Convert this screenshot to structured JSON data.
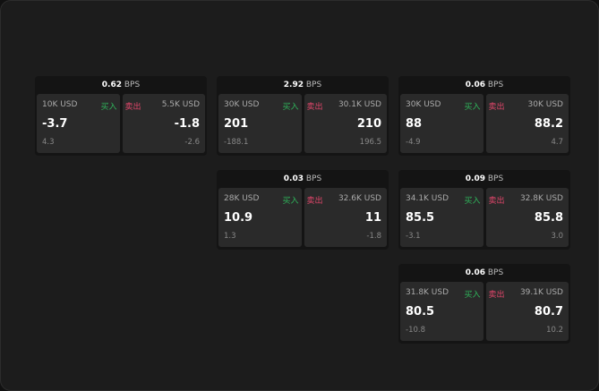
{
  "unit": "BPS",
  "buy_label": "买入",
  "sell_label": "卖出",
  "colors": {
    "buy": "#2fb35a",
    "sell": "#e0466a"
  },
  "tiles": [
    {
      "spread": "0.62",
      "buy": {
        "size": "10K USD",
        "price": "-3.7",
        "change": "4.3"
      },
      "sell": {
        "size": "5.5K USD",
        "price": "-1.8",
        "change": "-2.6"
      }
    },
    {
      "spread": "2.92",
      "buy": {
        "size": "30K USD",
        "price": "201",
        "change": "-188.1"
      },
      "sell": {
        "size": "30.1K USD",
        "price": "210",
        "change": "196.5"
      }
    },
    {
      "spread": "0.06",
      "buy": {
        "size": "30K USD",
        "price": "88",
        "change": "-4.9"
      },
      "sell": {
        "size": "30K USD",
        "price": "88.2",
        "change": "4.7"
      }
    },
    {
      "spread": "0.03",
      "buy": {
        "size": "28K USD",
        "price": "10.9",
        "change": "1.3"
      },
      "sell": {
        "size": "32.6K USD",
        "price": "11",
        "change": "-1.8"
      }
    },
    {
      "spread": "0.09",
      "buy": {
        "size": "34.1K USD",
        "price": "85.5",
        "change": "-3.1"
      },
      "sell": {
        "size": "32.8K USD",
        "price": "85.8",
        "change": "3.0"
      }
    },
    {
      "spread": "0.06",
      "buy": {
        "size": "31.8K USD",
        "price": "80.5",
        "change": "-10.8"
      },
      "sell": {
        "size": "39.1K USD",
        "price": "80.7",
        "change": "10.2"
      }
    }
  ]
}
